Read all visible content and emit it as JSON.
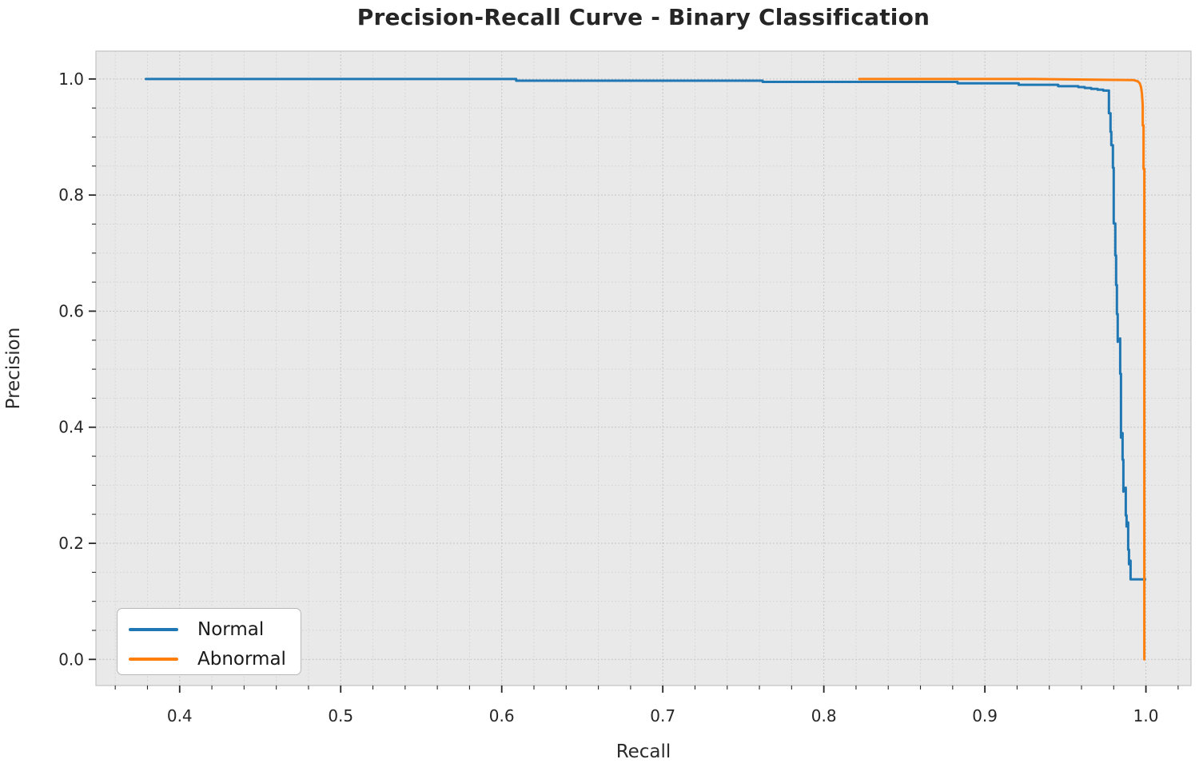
{
  "chart_data": {
    "type": "line",
    "title": "Precision-Recall Curve - Binary Classification",
    "xlabel": "Recall",
    "ylabel": "Precision",
    "xlim": [
      0.348,
      1.028
    ],
    "ylim": [
      -0.045,
      1.048
    ],
    "x_ticks": {
      "values": [
        0.4,
        0.5,
        0.6,
        0.7,
        0.8,
        0.9,
        1.0
      ],
      "labels": [
        "0.4",
        "0.5",
        "0.6",
        "0.7",
        "0.8",
        "0.9",
        "1.0"
      ]
    },
    "y_ticks": {
      "values": [
        0.0,
        0.2,
        0.4,
        0.6,
        0.8,
        1.0
      ],
      "labels": [
        "0.0",
        "0.2",
        "0.4",
        "0.6",
        "0.8",
        "1.0"
      ]
    },
    "minor_x_step": 0.02,
    "minor_y_step": 0.05,
    "grid": true,
    "plot_background": "#e9e9e9",
    "grid_major_color": "#bcbcbc",
    "grid_minor_color": "#d3d3d3",
    "spine_color": "#c6c6c6",
    "tick_color": "#262626",
    "legend": {
      "position": "lower-left"
    },
    "series": [
      {
        "name": "Normal",
        "color": "#1f77b4",
        "points": [
          [
            0.379,
            1.0
          ],
          [
            0.609,
            1.0
          ],
          [
            0.609,
            0.997
          ],
          [
            0.762,
            0.997
          ],
          [
            0.762,
            0.995
          ],
          [
            0.883,
            0.995
          ],
          [
            0.883,
            0.9925
          ],
          [
            0.921,
            0.9925
          ],
          [
            0.921,
            0.99
          ],
          [
            0.9455,
            0.99
          ],
          [
            0.9455,
            0.9875
          ],
          [
            0.958,
            0.9875
          ],
          [
            0.958,
            0.986
          ],
          [
            0.962,
            0.986
          ],
          [
            0.962,
            0.9845
          ],
          [
            0.966,
            0.9845
          ],
          [
            0.966,
            0.983
          ],
          [
            0.97,
            0.983
          ],
          [
            0.97,
            0.9815
          ],
          [
            0.9735,
            0.9815
          ],
          [
            0.9735,
            0.98
          ],
          [
            0.977,
            0.98
          ],
          [
            0.977,
            0.941
          ],
          [
            0.978,
            0.941
          ],
          [
            0.978,
            0.909
          ],
          [
            0.9785,
            0.909
          ],
          [
            0.9785,
            0.886
          ],
          [
            0.9795,
            0.886
          ],
          [
            0.9795,
            0.847
          ],
          [
            0.98,
            0.847
          ],
          [
            0.98,
            0.751
          ],
          [
            0.981,
            0.751
          ],
          [
            0.981,
            0.696
          ],
          [
            0.9815,
            0.696
          ],
          [
            0.9815,
            0.645
          ],
          [
            0.982,
            0.645
          ],
          [
            0.982,
            0.595
          ],
          [
            0.9825,
            0.595
          ],
          [
            0.9825,
            0.547
          ],
          [
            0.984,
            0.553
          ],
          [
            0.984,
            0.492
          ],
          [
            0.9845,
            0.492
          ],
          [
            0.9845,
            0.382
          ],
          [
            0.9855,
            0.39
          ],
          [
            0.9855,
            0.344
          ],
          [
            0.986,
            0.344
          ],
          [
            0.986,
            0.289
          ],
          [
            0.9875,
            0.296
          ],
          [
            0.9875,
            0.248
          ],
          [
            0.988,
            0.248
          ],
          [
            0.988,
            0.229
          ],
          [
            0.989,
            0.236
          ],
          [
            0.989,
            0.189
          ],
          [
            0.9895,
            0.189
          ],
          [
            0.9895,
            0.164
          ],
          [
            0.9905,
            0.17
          ],
          [
            0.9905,
            0.138
          ],
          [
            0.9995,
            0.138
          ]
        ]
      },
      {
        "name": "Abnormal",
        "color": "#ff7f0e",
        "points": [
          [
            0.822,
            1.0
          ],
          [
            0.93,
            1.0
          ],
          [
            0.98,
            0.9985
          ],
          [
            0.9925,
            0.998
          ],
          [
            0.995,
            0.996
          ],
          [
            0.9962,
            0.9925
          ],
          [
            0.997,
            0.986
          ],
          [
            0.9975,
            0.975
          ],
          [
            0.998,
            0.955
          ],
          [
            0.998,
            0.92
          ],
          [
            0.9985,
            0.92
          ],
          [
            0.9985,
            0.845
          ],
          [
            0.999,
            0.845
          ],
          [
            0.999,
            0.0
          ]
        ]
      }
    ]
  }
}
